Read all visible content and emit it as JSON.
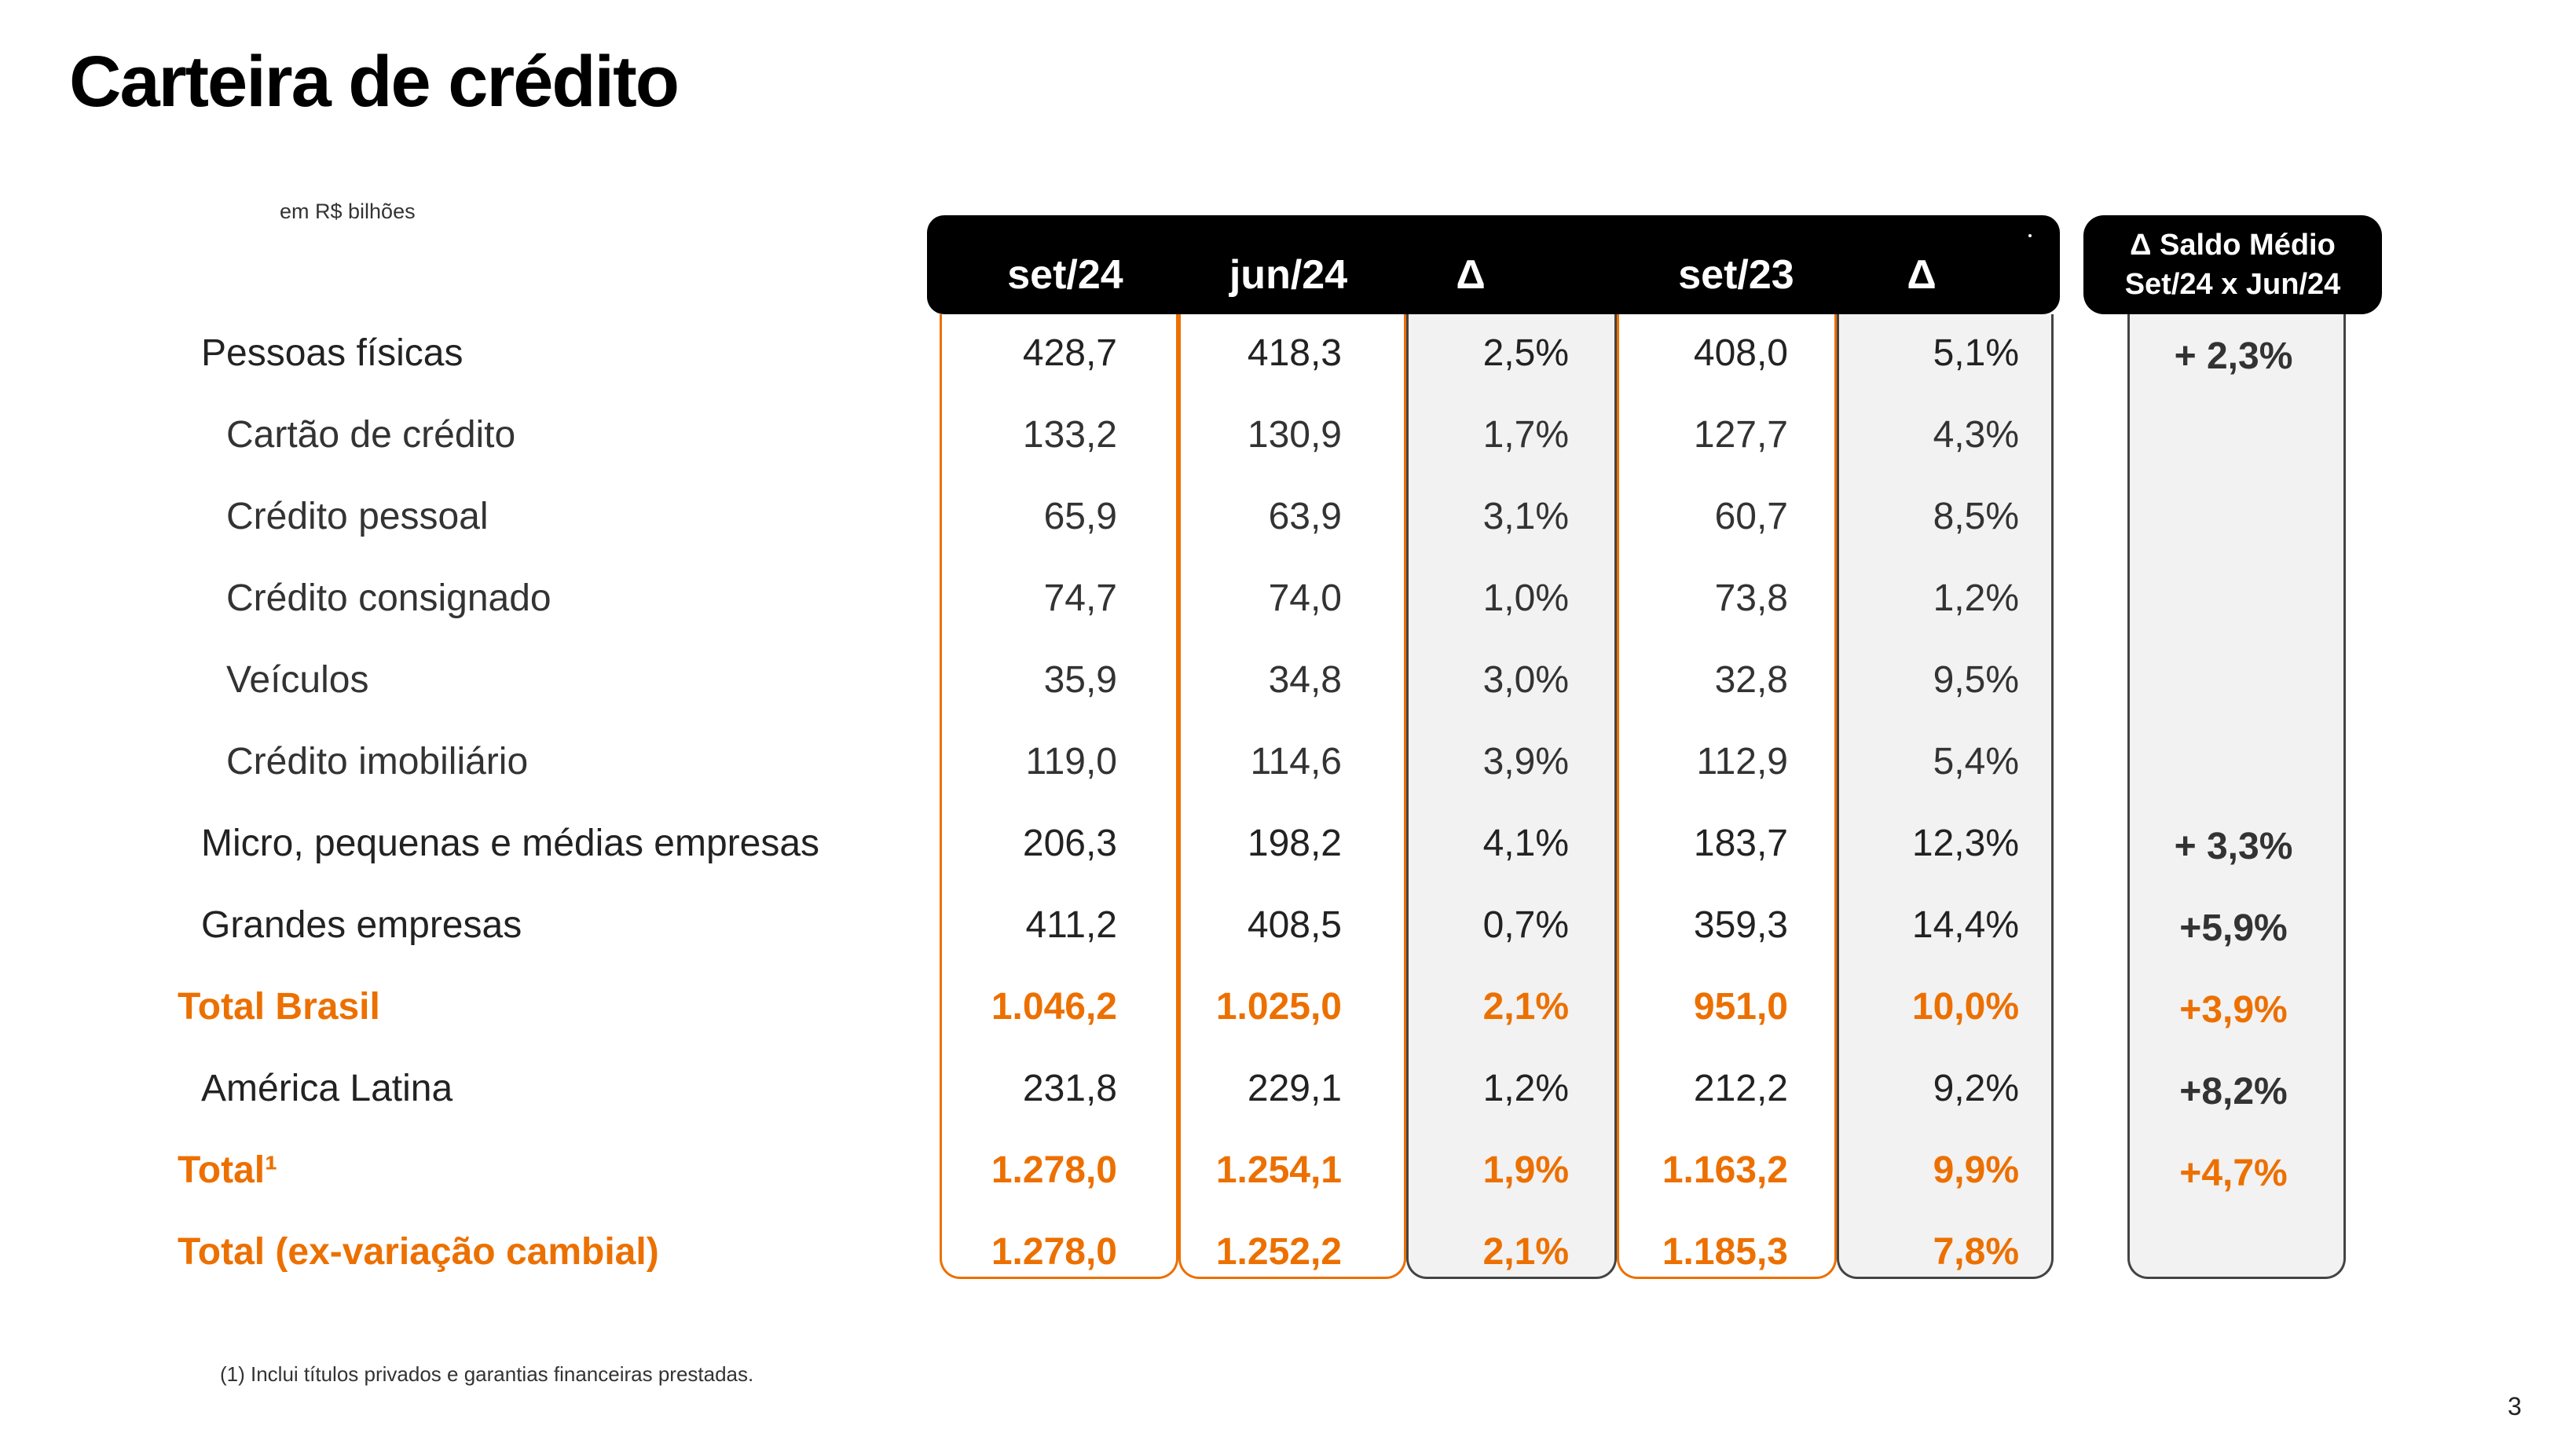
{
  "title": "Carteira de crédito",
  "units": "em R$ bilhões",
  "header": {
    "col1": "set/24",
    "col2": "jun/24",
    "col3": "Δ",
    "col4": "set/23",
    "col5": "Δ",
    "side_line1": "Δ  Saldo  Médio",
    "side_line2": "Set/24 x Jun/24"
  },
  "rows": [
    {
      "label": "Pessoas físicas",
      "set24": "428,7",
      "jun24": "418,3",
      "delta_q": "2,5%",
      "set23": "408,0",
      "delta_y": "5,1%",
      "saldo_medio": "+ 2,3%"
    },
    {
      "label": "Cartão de crédito",
      "set24": "133,2",
      "jun24": "130,9",
      "delta_q": "1,7%",
      "set23": "127,7",
      "delta_y": "4,3%",
      "saldo_medio": ""
    },
    {
      "label": "Crédito pessoal",
      "set24": "65,9",
      "jun24": "63,9",
      "delta_q": "3,1%",
      "set23": "60,7",
      "delta_y": "8,5%",
      "saldo_medio": ""
    },
    {
      "label": "Crédito consignado",
      "set24": "74,7",
      "jun24": "74,0",
      "delta_q": "1,0%",
      "set23": "73,8",
      "delta_y": "1,2%",
      "saldo_medio": ""
    },
    {
      "label": "Veículos",
      "set24": "35,9",
      "jun24": "34,8",
      "delta_q": "3,0%",
      "set23": "32,8",
      "delta_y": "9,5%",
      "saldo_medio": ""
    },
    {
      "label": "Crédito imobiliário",
      "set24": "119,0",
      "jun24": "114,6",
      "delta_q": "3,9%",
      "set23": "112,9",
      "delta_y": "5,4%",
      "saldo_medio": ""
    },
    {
      "label": "Micro, pequenas e médias empresas",
      "set24": "206,3",
      "jun24": "198,2",
      "delta_q": "4,1%",
      "set23": "183,7",
      "delta_y": "12,3%",
      "saldo_medio": "+ 3,3%"
    },
    {
      "label": "Grandes empresas",
      "set24": "411,2",
      "jun24": "408,5",
      "delta_q": "0,7%",
      "set23": "359,3",
      "delta_y": "14,4%",
      "saldo_medio": "+5,9%"
    },
    {
      "label": "Total Brasil",
      "set24": "1.046,2",
      "jun24": "1.025,0",
      "delta_q": "2,1%",
      "set23": "951,0",
      "delta_y": "10,0%",
      "saldo_medio": "+3,9%"
    },
    {
      "label": "América Latina",
      "set24": "231,8",
      "jun24": "229,1",
      "delta_q": "1,2%",
      "set23": "212,2",
      "delta_y": "9,2%",
      "saldo_medio": "+8,2%"
    },
    {
      "label": "Total¹",
      "set24": "1.278,0",
      "jun24": "1.254,1",
      "delta_q": "1,9%",
      "set23": "1.163,2",
      "delta_y": "9,9%",
      "saldo_medio": "+4,7%"
    },
    {
      "label": "Total (ex-variação cambial)",
      "set24": "1.278,0",
      "jun24": "1.252,2",
      "delta_q": "2,1%",
      "set23": "1.185,3",
      "delta_y": "7,8%",
      "saldo_medio": ""
    }
  ],
  "footnote": "(1) Inclui títulos privados e garantias financeiras prestadas.",
  "page_number": "3"
}
